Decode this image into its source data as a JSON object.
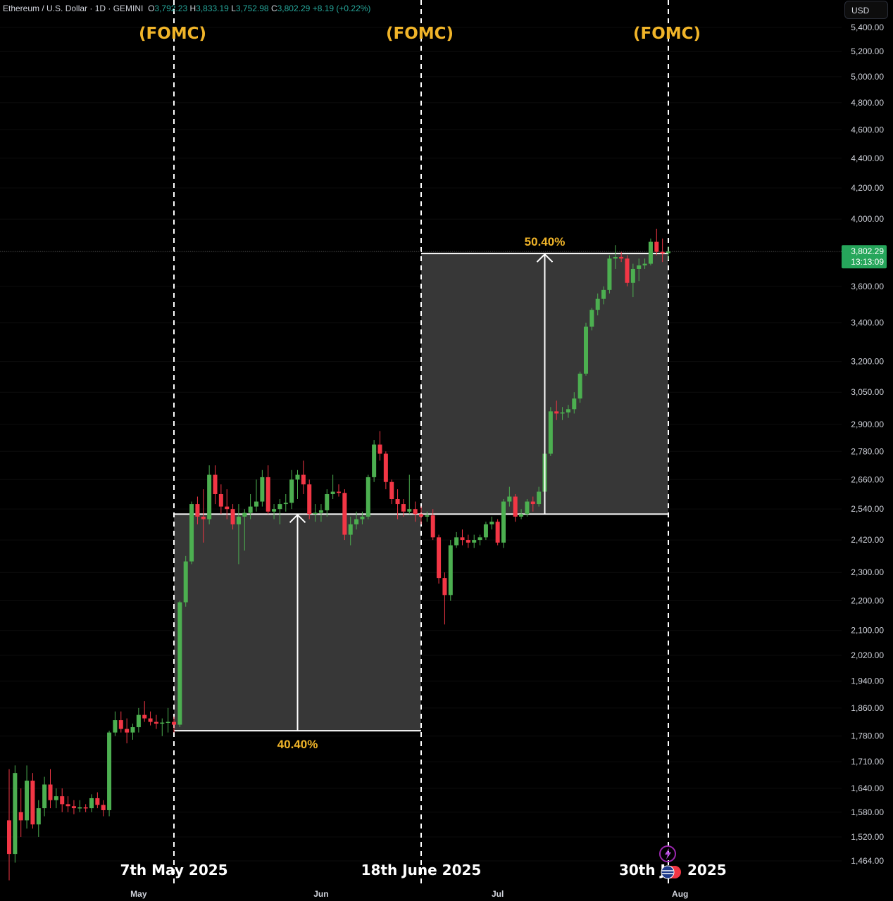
{
  "header": {
    "symbol": "Ethereum / U.S. Dollar · 1D · GEMINI",
    "open_label": "O",
    "open": "3,792.23",
    "high_label": "H",
    "high": "3,833.19",
    "low_label": "L",
    "low": "3,752.98",
    "close_label": "C",
    "close": "3,802.29",
    "change": "+8.19 (+0.22%)"
  },
  "currency_button": "USD",
  "colors": {
    "up": "#4caf50",
    "down": "#f23645",
    "annotation": "#f0b429",
    "box": "#3a3a3a",
    "price_badge": "#26a65b"
  },
  "price_badge": {
    "price": "3,802.29",
    "countdown": "13:13:09"
  },
  "chart_data": {
    "type": "candlestick",
    "title": "Ethereum / U.S. Dollar · 1D · GEMINI",
    "y_scale": "log",
    "y_ticks": [
      1464,
      1520,
      1580,
      1640,
      1710,
      1780,
      1860,
      1940,
      2020,
      2100,
      2200,
      2300,
      2420,
      2540,
      2660,
      2780,
      2900,
      3050,
      3200,
      3400,
      3600,
      3800,
      4000,
      4200,
      4400,
      4600,
      4800,
      5000,
      5200,
      5400
    ],
    "y_tick_labels": [
      "1,464.00",
      "1,520.00",
      "1,580.00",
      "1,640.00",
      "1,710.00",
      "1,780.00",
      "1,860.00",
      "1,940.00",
      "2,020.00",
      "2,100.00",
      "2,200.00",
      "2,300.00",
      "2,420.00",
      "2,540.00",
      "2,660.00",
      "2,780.00",
      "2,900.00",
      "3,050.00",
      "3,200.00",
      "3,400.00",
      "3,600.00",
      "3,800.00",
      "4,000.00",
      "4,200.00",
      "4,400.00",
      "4,600.00",
      "4,800.00",
      "5,000.00",
      "5,200.00",
      "5,400.00"
    ],
    "x_month_labels": [
      {
        "label": "May",
        "date": "2025-05-01"
      },
      {
        "label": "Jun",
        "date": "2025-06-01"
      },
      {
        "label": "Jul",
        "date": "2025-07-01"
      },
      {
        "label": "Aug",
        "date": "2025-08-01"
      }
    ],
    "fomc_events": [
      {
        "label": "(FOMC)",
        "date": "2025-05-07",
        "date_label": "7th May 2025"
      },
      {
        "label": "(FOMC)",
        "date": "2025-06-18",
        "date_label": "18th June 2025"
      },
      {
        "label": "(FOMC)",
        "date": "2025-07-30",
        "date_label": "30th J",
        "date_label_tail": "2025"
      }
    ],
    "measurements": [
      {
        "label": "40.40%",
        "from_date": "2025-05-07",
        "to_date": "2025-06-18",
        "from_price": 1795,
        "to_price": 2520
      },
      {
        "label": "50.40%",
        "from_date": "2025-06-18",
        "to_date": "2025-07-30",
        "from_price": 2520,
        "to_price": 3790
      }
    ],
    "last_price": 3802.29,
    "candles": [
      {
        "date": "2025-04-09",
        "o": 1560,
        "h": 1690,
        "l": 1420,
        "c": 1480
      },
      {
        "date": "2025-04-10",
        "o": 1480,
        "h": 1700,
        "l": 1460,
        "c": 1680
      },
      {
        "date": "2025-04-11",
        "o": 1580,
        "h": 1640,
        "l": 1520,
        "c": 1560
      },
      {
        "date": "2025-04-12",
        "o": 1560,
        "h": 1700,
        "l": 1540,
        "c": 1660
      },
      {
        "date": "2025-04-13",
        "o": 1660,
        "h": 1680,
        "l": 1540,
        "c": 1550
      },
      {
        "date": "2025-04-14",
        "o": 1550,
        "h": 1610,
        "l": 1520,
        "c": 1590
      },
      {
        "date": "2025-04-15",
        "o": 1590,
        "h": 1670,
        "l": 1570,
        "c": 1650
      },
      {
        "date": "2025-04-16",
        "o": 1650,
        "h": 1690,
        "l": 1590,
        "c": 1610
      },
      {
        "date": "2025-04-17",
        "o": 1610,
        "h": 1640,
        "l": 1590,
        "c": 1620
      },
      {
        "date": "2025-04-18",
        "o": 1620,
        "h": 1640,
        "l": 1580,
        "c": 1600
      },
      {
        "date": "2025-04-19",
        "o": 1600,
        "h": 1620,
        "l": 1580,
        "c": 1595
      },
      {
        "date": "2025-04-20",
        "o": 1595,
        "h": 1610,
        "l": 1575,
        "c": 1590
      },
      {
        "date": "2025-04-21",
        "o": 1590,
        "h": 1610,
        "l": 1580,
        "c": 1592
      },
      {
        "date": "2025-04-22",
        "o": 1592,
        "h": 1600,
        "l": 1580,
        "c": 1590
      },
      {
        "date": "2025-04-23",
        "o": 1590,
        "h": 1625,
        "l": 1580,
        "c": 1615
      },
      {
        "date": "2025-04-24",
        "o": 1615,
        "h": 1630,
        "l": 1590,
        "c": 1598
      },
      {
        "date": "2025-04-25",
        "o": 1598,
        "h": 1610,
        "l": 1570,
        "c": 1585
      },
      {
        "date": "2025-04-26",
        "o": 1585,
        "h": 1795,
        "l": 1570,
        "c": 1790
      },
      {
        "date": "2025-04-27",
        "o": 1790,
        "h": 1850,
        "l": 1780,
        "c": 1825
      },
      {
        "date": "2025-04-28",
        "o": 1825,
        "h": 1850,
        "l": 1790,
        "c": 1800
      },
      {
        "date": "2025-04-29",
        "o": 1800,
        "h": 1830,
        "l": 1760,
        "c": 1790
      },
      {
        "date": "2025-04-30",
        "o": 1790,
        "h": 1815,
        "l": 1770,
        "c": 1805
      },
      {
        "date": "2025-05-01",
        "o": 1805,
        "h": 1860,
        "l": 1790,
        "c": 1840
      },
      {
        "date": "2025-05-02",
        "o": 1840,
        "h": 1880,
        "l": 1820,
        "c": 1830
      },
      {
        "date": "2025-05-03",
        "o": 1830,
        "h": 1850,
        "l": 1810,
        "c": 1820
      },
      {
        "date": "2025-05-04",
        "o": 1820,
        "h": 1840,
        "l": 1800,
        "c": 1815
      },
      {
        "date": "2025-05-05",
        "o": 1815,
        "h": 1830,
        "l": 1780,
        "c": 1818
      },
      {
        "date": "2025-05-06",
        "o": 1818,
        "h": 1860,
        "l": 1790,
        "c": 1820
      },
      {
        "date": "2025-05-07",
        "o": 1820,
        "h": 1835,
        "l": 1790,
        "c": 1812
      },
      {
        "date": "2025-05-08",
        "o": 1812,
        "h": 2200,
        "l": 1805,
        "c": 2195
      },
      {
        "date": "2025-05-09",
        "o": 2195,
        "h": 2360,
        "l": 2180,
        "c": 2340
      },
      {
        "date": "2025-05-10",
        "o": 2340,
        "h": 2570,
        "l": 2330,
        "c": 2560
      },
      {
        "date": "2025-05-11",
        "o": 2560,
        "h": 2590,
        "l": 2480,
        "c": 2510
      },
      {
        "date": "2025-05-12",
        "o": 2510,
        "h": 2620,
        "l": 2410,
        "c": 2500
      },
      {
        "date": "2025-05-13",
        "o": 2500,
        "h": 2720,
        "l": 2480,
        "c": 2680
      },
      {
        "date": "2025-05-14",
        "o": 2680,
        "h": 2720,
        "l": 2560,
        "c": 2600
      },
      {
        "date": "2025-05-15",
        "o": 2600,
        "h": 2640,
        "l": 2520,
        "c": 2550
      },
      {
        "date": "2025-05-16",
        "o": 2550,
        "h": 2620,
        "l": 2500,
        "c": 2540
      },
      {
        "date": "2025-05-17",
        "o": 2540,
        "h": 2560,
        "l": 2460,
        "c": 2480
      },
      {
        "date": "2025-05-18",
        "o": 2480,
        "h": 2560,
        "l": 2330,
        "c": 2510
      },
      {
        "date": "2025-05-19",
        "o": 2510,
        "h": 2540,
        "l": 2380,
        "c": 2525
      },
      {
        "date": "2025-05-20",
        "o": 2525,
        "h": 2600,
        "l": 2500,
        "c": 2550
      },
      {
        "date": "2025-05-21",
        "o": 2550,
        "h": 2660,
        "l": 2530,
        "c": 2570
      },
      {
        "date": "2025-05-22",
        "o": 2570,
        "h": 2700,
        "l": 2550,
        "c": 2670
      },
      {
        "date": "2025-05-23",
        "o": 2670,
        "h": 2720,
        "l": 2520,
        "c": 2530
      },
      {
        "date": "2025-05-24",
        "o": 2530,
        "h": 2560,
        "l": 2500,
        "c": 2540
      },
      {
        "date": "2025-05-25",
        "o": 2540,
        "h": 2580,
        "l": 2480,
        "c": 2560
      },
      {
        "date": "2025-05-26",
        "o": 2560,
        "h": 2600,
        "l": 2530,
        "c": 2565
      },
      {
        "date": "2025-05-27",
        "o": 2565,
        "h": 2700,
        "l": 2540,
        "c": 2660
      },
      {
        "date": "2025-05-28",
        "o": 2660,
        "h": 2700,
        "l": 2580,
        "c": 2680
      },
      {
        "date": "2025-05-29",
        "o": 2680,
        "h": 2740,
        "l": 2600,
        "c": 2640
      },
      {
        "date": "2025-05-30",
        "o": 2640,
        "h": 2660,
        "l": 2500,
        "c": 2520
      },
      {
        "date": "2025-05-31",
        "o": 2520,
        "h": 2560,
        "l": 2490,
        "c": 2525
      },
      {
        "date": "2025-06-01",
        "o": 2525,
        "h": 2560,
        "l": 2490,
        "c": 2535
      },
      {
        "date": "2025-06-02",
        "o": 2535,
        "h": 2620,
        "l": 2510,
        "c": 2600
      },
      {
        "date": "2025-06-03",
        "o": 2600,
        "h": 2680,
        "l": 2580,
        "c": 2610
      },
      {
        "date": "2025-06-04",
        "o": 2610,
        "h": 2640,
        "l": 2590,
        "c": 2605
      },
      {
        "date": "2025-06-05",
        "o": 2605,
        "h": 2620,
        "l": 2420,
        "c": 2440
      },
      {
        "date": "2025-06-06",
        "o": 2440,
        "h": 2510,
        "l": 2400,
        "c": 2480
      },
      {
        "date": "2025-06-07",
        "o": 2480,
        "h": 2530,
        "l": 2460,
        "c": 2500
      },
      {
        "date": "2025-06-08",
        "o": 2500,
        "h": 2530,
        "l": 2480,
        "c": 2510
      },
      {
        "date": "2025-06-09",
        "o": 2510,
        "h": 2680,
        "l": 2500,
        "c": 2670
      },
      {
        "date": "2025-06-10",
        "o": 2670,
        "h": 2830,
        "l": 2650,
        "c": 2810
      },
      {
        "date": "2025-06-11",
        "o": 2810,
        "h": 2870,
        "l": 2740,
        "c": 2770
      },
      {
        "date": "2025-06-12",
        "o": 2770,
        "h": 2780,
        "l": 2620,
        "c": 2650
      },
      {
        "date": "2025-06-13",
        "o": 2650,
        "h": 2660,
        "l": 2560,
        "c": 2580
      },
      {
        "date": "2025-06-14",
        "o": 2580,
        "h": 2620,
        "l": 2500,
        "c": 2560
      },
      {
        "date": "2025-06-15",
        "o": 2560,
        "h": 2580,
        "l": 2510,
        "c": 2530
      },
      {
        "date": "2025-06-16",
        "o": 2530,
        "h": 2680,
        "l": 2520,
        "c": 2540
      },
      {
        "date": "2025-06-17",
        "o": 2540,
        "h": 2570,
        "l": 2490,
        "c": 2520
      },
      {
        "date": "2025-06-18",
        "o": 2520,
        "h": 2550,
        "l": 2480,
        "c": 2510
      },
      {
        "date": "2025-06-19",
        "o": 2510,
        "h": 2530,
        "l": 2490,
        "c": 2515
      },
      {
        "date": "2025-06-20",
        "o": 2515,
        "h": 2540,
        "l": 2420,
        "c": 2430
      },
      {
        "date": "2025-06-21",
        "o": 2430,
        "h": 2440,
        "l": 2260,
        "c": 2280
      },
      {
        "date": "2025-06-22",
        "o": 2280,
        "h": 2300,
        "l": 2120,
        "c": 2220
      },
      {
        "date": "2025-06-23",
        "o": 2220,
        "h": 2420,
        "l": 2200,
        "c": 2400
      },
      {
        "date": "2025-06-24",
        "o": 2400,
        "h": 2450,
        "l": 2390,
        "c": 2430
      },
      {
        "date": "2025-06-25",
        "o": 2430,
        "h": 2460,
        "l": 2400,
        "c": 2420
      },
      {
        "date": "2025-06-26",
        "o": 2420,
        "h": 2440,
        "l": 2390,
        "c": 2410
      },
      {
        "date": "2025-06-27",
        "o": 2410,
        "h": 2440,
        "l": 2390,
        "c": 2420
      },
      {
        "date": "2025-06-28",
        "o": 2420,
        "h": 2440,
        "l": 2400,
        "c": 2430
      },
      {
        "date": "2025-06-29",
        "o": 2430,
        "h": 2490,
        "l": 2420,
        "c": 2480
      },
      {
        "date": "2025-06-30",
        "o": 2480,
        "h": 2510,
        "l": 2460,
        "c": 2490
      },
      {
        "date": "2025-07-01",
        "o": 2490,
        "h": 2500,
        "l": 2400,
        "c": 2410
      },
      {
        "date": "2025-07-02",
        "o": 2410,
        "h": 2580,
        "l": 2390,
        "c": 2570
      },
      {
        "date": "2025-07-03",
        "o": 2570,
        "h": 2630,
        "l": 2550,
        "c": 2590
      },
      {
        "date": "2025-07-04",
        "o": 2590,
        "h": 2600,
        "l": 2490,
        "c": 2510
      },
      {
        "date": "2025-07-05",
        "o": 2510,
        "h": 2540,
        "l": 2500,
        "c": 2520
      },
      {
        "date": "2025-07-06",
        "o": 2520,
        "h": 2580,
        "l": 2510,
        "c": 2570
      },
      {
        "date": "2025-07-07",
        "o": 2570,
        "h": 2590,
        "l": 2530,
        "c": 2560
      },
      {
        "date": "2025-07-08",
        "o": 2560,
        "h": 2630,
        "l": 2550,
        "c": 2610
      },
      {
        "date": "2025-07-09",
        "o": 2610,
        "h": 2790,
        "l": 2600,
        "c": 2770
      },
      {
        "date": "2025-07-10",
        "o": 2770,
        "h": 2980,
        "l": 2760,
        "c": 2960
      },
      {
        "date": "2025-07-11",
        "o": 2960,
        "h": 3010,
        "l": 2920,
        "c": 2950
      },
      {
        "date": "2025-07-12",
        "o": 2950,
        "h": 2980,
        "l": 2920,
        "c": 2955
      },
      {
        "date": "2025-07-13",
        "o": 2955,
        "h": 2990,
        "l": 2930,
        "c": 2970
      },
      {
        "date": "2025-07-14",
        "o": 2970,
        "h": 3050,
        "l": 2950,
        "c": 3020
      },
      {
        "date": "2025-07-15",
        "o": 3020,
        "h": 3150,
        "l": 3000,
        "c": 3140
      },
      {
        "date": "2025-07-16",
        "o": 3140,
        "h": 3400,
        "l": 3130,
        "c": 3380
      },
      {
        "date": "2025-07-17",
        "o": 3380,
        "h": 3480,
        "l": 3360,
        "c": 3470
      },
      {
        "date": "2025-07-18",
        "o": 3470,
        "h": 3560,
        "l": 3440,
        "c": 3530
      },
      {
        "date": "2025-07-19",
        "o": 3530,
        "h": 3600,
        "l": 3500,
        "c": 3580
      },
      {
        "date": "2025-07-20",
        "o": 3580,
        "h": 3780,
        "l": 3560,
        "c": 3760
      },
      {
        "date": "2025-07-21",
        "o": 3760,
        "h": 3840,
        "l": 3700,
        "c": 3770
      },
      {
        "date": "2025-07-22",
        "o": 3770,
        "h": 3800,
        "l": 3740,
        "c": 3760
      },
      {
        "date": "2025-07-23",
        "o": 3760,
        "h": 3780,
        "l": 3600,
        "c": 3620
      },
      {
        "date": "2025-07-24",
        "o": 3620,
        "h": 3730,
        "l": 3540,
        "c": 3700
      },
      {
        "date": "2025-07-25",
        "o": 3700,
        "h": 3760,
        "l": 3630,
        "c": 3720
      },
      {
        "date": "2025-07-26",
        "o": 3720,
        "h": 3760,
        "l": 3700,
        "c": 3730
      },
      {
        "date": "2025-07-27",
        "o": 3730,
        "h": 3880,
        "l": 3720,
        "c": 3860
      },
      {
        "date": "2025-07-28",
        "o": 3860,
        "h": 3940,
        "l": 3780,
        "c": 3800
      },
      {
        "date": "2025-07-29",
        "o": 3800,
        "h": 3880,
        "l": 3740,
        "c": 3790
      },
      {
        "date": "2025-07-30",
        "o": 3792.23,
        "h": 3833.19,
        "l": 3752.98,
        "c": 3802.29
      }
    ]
  }
}
